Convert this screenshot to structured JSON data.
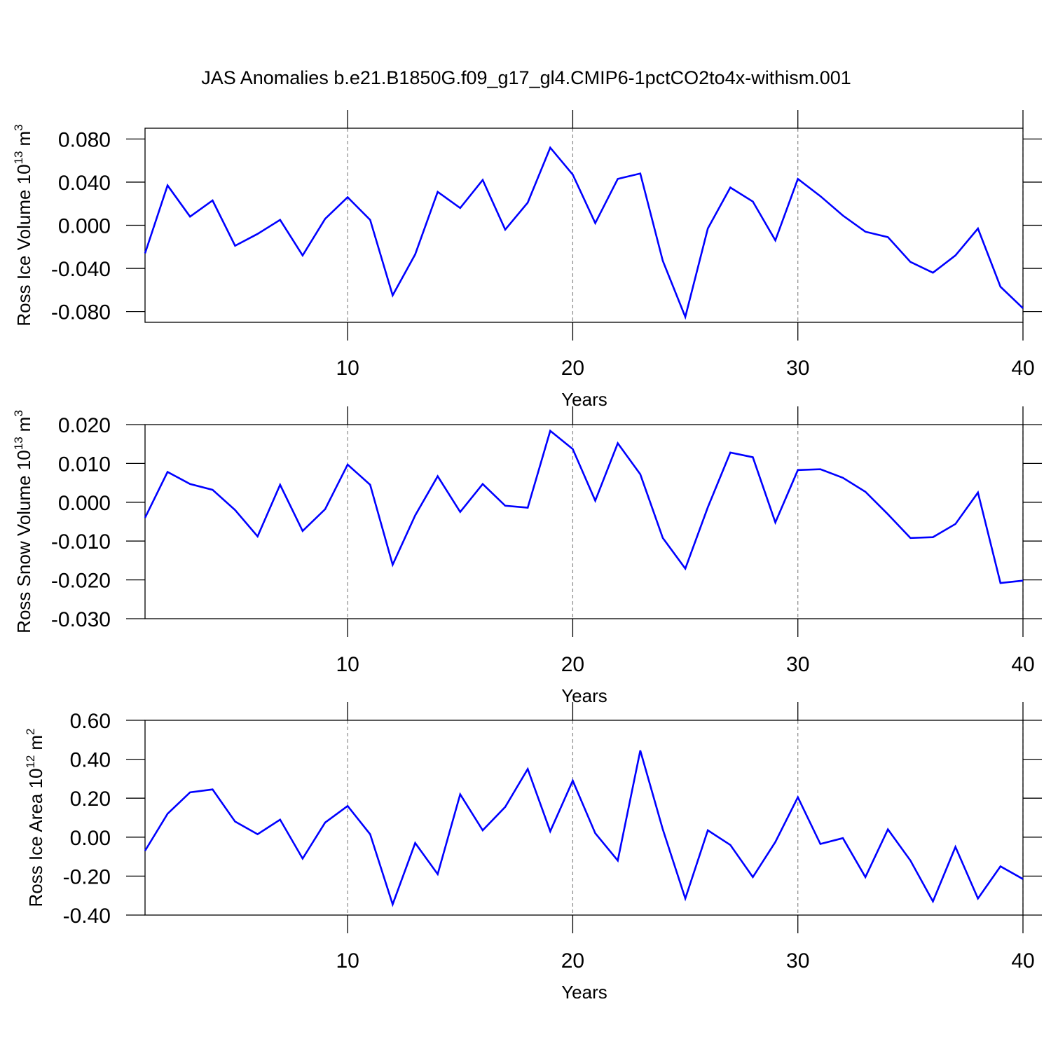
{
  "chart_data": [
    {
      "type": "line",
      "title": "JAS Anomalies b.e21.B1850G.f09_g17_gl4.CMIP6-1pctCO2to4x-withism.001",
      "ylabel": [
        "Ross Ice Volume 10",
        "13",
        "m",
        "3"
      ],
      "xlabel": "Years",
      "x": [
        1,
        2,
        3,
        4,
        5,
        6,
        7,
        8,
        9,
        10,
        11,
        12,
        13,
        14,
        15,
        16,
        17,
        18,
        19,
        20,
        21,
        22,
        23,
        24,
        25,
        26,
        27,
        28,
        29,
        30,
        31,
        32,
        33,
        34,
        35,
        36,
        37,
        38,
        39,
        40
      ],
      "series": [
        {
          "color": "#0000ff",
          "values": [
            -0.026,
            0.037,
            0.008,
            0.023,
            -0.019,
            -0.008,
            0.005,
            -0.028,
            0.006,
            0.026,
            0.005,
            -0.065,
            -0.027,
            0.031,
            0.016,
            0.042,
            -0.004,
            0.021,
            0.072,
            0.047,
            0.002,
            0.043,
            0.048,
            -0.033,
            -0.085,
            -0.003,
            0.035,
            0.022,
            -0.014,
            0.043,
            0.027,
            0.009,
            -0.006,
            -0.011,
            -0.034,
            -0.044,
            -0.028,
            -0.003,
            -0.057,
            -0.077
          ]
        }
      ],
      "xlim": [
        1,
        40
      ],
      "xticks": [
        10,
        20,
        30,
        40
      ],
      "ylim": [
        -0.09,
        0.09
      ],
      "yticks": [
        {
          "value": -0.08,
          "label": "-0.080"
        },
        {
          "value": -0.04,
          "label": "-0.040"
        },
        {
          "value": 0,
          "label": "0.000"
        },
        {
          "value": 0.04,
          "label": "0.040"
        },
        {
          "value": 0.08,
          "label": "0.080"
        }
      ],
      "xgrid": true
    },
    {
      "type": "line",
      "ylabel": [
        "Ross Snow Volume 10",
        "13",
        "m",
        "3"
      ],
      "xlabel": "Years",
      "x": [
        1,
        2,
        3,
        4,
        5,
        6,
        7,
        8,
        9,
        10,
        11,
        12,
        13,
        14,
        15,
        16,
        17,
        18,
        19,
        20,
        21,
        22,
        23,
        24,
        25,
        26,
        27,
        28,
        29,
        30,
        31,
        32,
        33,
        34,
        35,
        36,
        37,
        38,
        39,
        40
      ],
      "series": [
        {
          "color": "#0000ff",
          "values": [
            -0.004,
            0.0078,
            0.0047,
            0.0032,
            -0.002,
            -0.0088,
            0.0045,
            -0.0074,
            -0.0018,
            0.0097,
            0.0045,
            -0.0161,
            -0.0034,
            0.0067,
            -0.0025,
            0.0047,
            -0.0009,
            -0.0014,
            0.0184,
            0.0137,
            0.0004,
            0.0152,
            0.0072,
            -0.0092,
            -0.0171,
            -0.0013,
            0.0128,
            0.0116,
            -0.0052,
            0.0083,
            0.0085,
            0.0063,
            0.0027,
            -0.0031,
            -0.0092,
            -0.009,
            -0.0056,
            0.0025,
            -0.0208,
            -0.0202
          ]
        }
      ],
      "xlim": [
        1,
        40
      ],
      "xticks": [
        10,
        20,
        30,
        40
      ],
      "ylim": [
        -0.03,
        0.02
      ],
      "yticks": [
        {
          "value": -0.03,
          "label": "-0.030"
        },
        {
          "value": -0.02,
          "label": "-0.020"
        },
        {
          "value": -0.01,
          "label": "-0.010"
        },
        {
          "value": 0,
          "label": "0.000"
        },
        {
          "value": 0.01,
          "label": "0.010"
        },
        {
          "value": 0.02,
          "label": "0.020"
        }
      ],
      "xgrid": true
    },
    {
      "type": "line",
      "ylabel": [
        "Ross Ice Area 10",
        "12",
        "m",
        "2"
      ],
      "xlabel": "Years",
      "x": [
        1,
        2,
        3,
        4,
        5,
        6,
        7,
        8,
        9,
        10,
        11,
        12,
        13,
        14,
        15,
        16,
        17,
        18,
        19,
        20,
        21,
        22,
        23,
        24,
        25,
        26,
        27,
        28,
        29,
        30,
        31,
        32,
        33,
        34,
        35,
        36,
        37,
        38,
        39,
        40
      ],
      "series": [
        {
          "color": "#0000ff",
          "values": [
            -0.07,
            0.12,
            0.23,
            0.245,
            0.08,
            0.015,
            0.09,
            -0.11,
            0.075,
            0.16,
            0.015,
            -0.345,
            -0.03,
            -0.19,
            0.22,
            0.035,
            0.155,
            0.35,
            0.03,
            0.29,
            0.02,
            -0.12,
            0.445,
            0.04,
            -0.315,
            0.035,
            -0.04,
            -0.205,
            -0.025,
            0.205,
            -0.035,
            -0.005,
            -0.205,
            0.04,
            -0.12,
            -0.33,
            -0.05,
            -0.315,
            -0.15,
            -0.215
          ]
        }
      ],
      "xlim": [
        1,
        40
      ],
      "xticks": [
        10,
        20,
        30,
        40
      ],
      "ylim": [
        -0.4,
        0.6
      ],
      "yticks": [
        {
          "value": -0.4,
          "label": "-0.40"
        },
        {
          "value": -0.2,
          "label": "-0.20"
        },
        {
          "value": 0,
          "label": "0.00"
        },
        {
          "value": 0.2,
          "label": "0.20"
        },
        {
          "value": 0.4,
          "label": "0.40"
        },
        {
          "value": 0.6,
          "label": "0.60"
        }
      ],
      "xgrid": true
    }
  ]
}
